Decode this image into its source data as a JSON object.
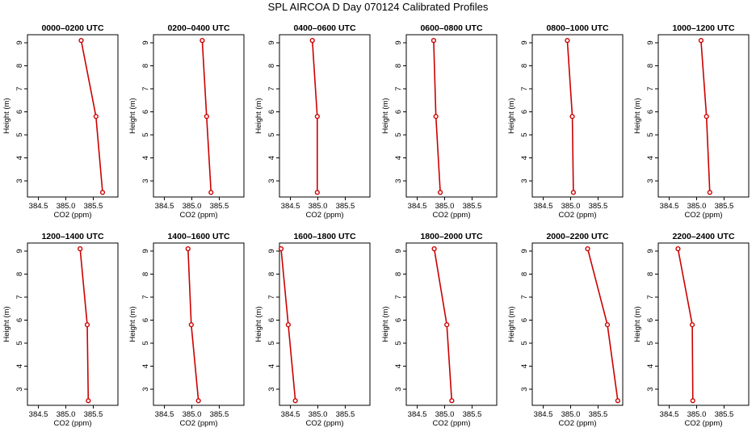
{
  "figure": {
    "title": "SPL AIRCOA D  Day 070124  Calibrated Profiles"
  },
  "chart_data": {
    "type": "line",
    "xlabel": "CO2 (ppm)",
    "ylabel": "Height (m)",
    "xlim": [
      384.3,
      385.95
    ],
    "ylim": [
      2.3,
      9.35
    ],
    "xticks": [
      "384.5",
      "385.0",
      "385.5"
    ],
    "yticks": [
      "3",
      "4",
      "5",
      "6",
      "7",
      "8",
      "9"
    ],
    "grid": false,
    "line_color": "#cc0000",
    "heights": [
      9.1,
      5.8,
      2.5
    ],
    "panels": [
      {
        "title": "0000–0200 UTC",
        "co2": [
          385.28,
          385.55,
          385.67
        ]
      },
      {
        "title": "0200–0400 UTC",
        "co2": [
          385.19,
          385.27,
          385.35
        ]
      },
      {
        "title": "0400–0600 UTC",
        "co2": [
          384.9,
          384.99,
          384.99
        ]
      },
      {
        "title": "0600–0800 UTC",
        "co2": [
          384.8,
          384.84,
          384.92
        ]
      },
      {
        "title": "0800–1000 UTC",
        "co2": [
          384.94,
          385.03,
          385.05
        ]
      },
      {
        "title": "1000–1200 UTC",
        "co2": [
          385.08,
          385.18,
          385.24
        ]
      },
      {
        "title": "1200–1400 UTC",
        "co2": [
          385.26,
          385.39,
          385.41
        ]
      },
      {
        "title": "1400–1600 UTC",
        "co2": [
          384.93,
          384.99,
          385.12
        ]
      },
      {
        "title": "1600–1800 UTC",
        "co2": [
          384.33,
          384.46,
          384.59
        ]
      },
      {
        "title": "1800–2000 UTC",
        "co2": [
          384.81,
          385.04,
          385.13
        ]
      },
      {
        "title": "2000–2200 UTC",
        "co2": [
          385.31,
          385.67,
          385.86
        ]
      },
      {
        "title": "2200–2400 UTC",
        "co2": [
          384.66,
          384.92,
          384.93
        ]
      }
    ]
  }
}
